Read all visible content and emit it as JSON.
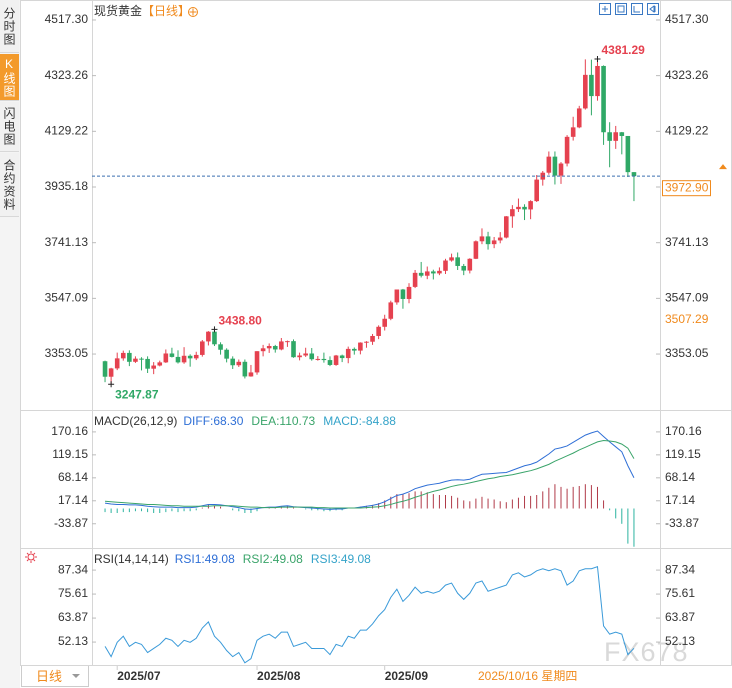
{
  "ui": {
    "sidebar": [
      "分时图",
      "K线图",
      "闪电图",
      "合约资料"
    ],
    "active_tab": 1,
    "period_tab": "日线",
    "cursor_date": "2025/10/16 星期四",
    "watermark": "FX678"
  },
  "chart_data": [
    {
      "type": "candlestick",
      "title": "现货黄金",
      "period": "【日线】",
      "up_color": "#e5414f",
      "down_color": "#2fa866",
      "categories": [
        null,
        null,
        "2025/07",
        null,
        null,
        null,
        null,
        null,
        null,
        null,
        null,
        null,
        null,
        null,
        null,
        null,
        null,
        null,
        null,
        null,
        null,
        null,
        null,
        null,
        null,
        "2025/08",
        null,
        null,
        null,
        null,
        null,
        null,
        null,
        null,
        null,
        null,
        null,
        null,
        null,
        null,
        null,
        null,
        null,
        null,
        null,
        null,
        "2025/09",
        null,
        null,
        null,
        null,
        null,
        null,
        null,
        null,
        null,
        null,
        null,
        null,
        null,
        null,
        null,
        null,
        null,
        null,
        null,
        null,
        null,
        null,
        null,
        null,
        null,
        null,
        null,
        null,
        null,
        null,
        null,
        null,
        null,
        null,
        null,
        null,
        null,
        null,
        null,
        null,
        null
      ],
      "open": [
        3328,
        3274,
        3303,
        3338,
        3357,
        3326,
        3337,
        3336,
        3302,
        3313,
        3324,
        3355,
        3343,
        3324,
        3347,
        3338,
        3350,
        3397,
        3431,
        3387,
        3368,
        3337,
        3314,
        3326,
        3275,
        3289,
        3363,
        3373,
        3381,
        3369,
        3397,
        3398,
        3342,
        3348,
        3355,
        3335,
        3336,
        3332,
        3315,
        3348,
        3339,
        3371,
        3365,
        3393,
        3396,
        3416,
        3448,
        3476,
        3533,
        3578,
        3545,
        3587,
        3636,
        3626,
        3641,
        3634,
        3643,
        3679,
        3690,
        3660,
        3644,
        3685,
        3746,
        3763,
        3736,
        3749,
        3759,
        3833,
        3858,
        3866,
        3857,
        3886,
        3961,
        3985,
        4041,
        3975,
        4017,
        4110,
        4143,
        4209,
        4326,
        4252,
        4357,
        4126,
        4096,
        4126,
        4113,
        3987
      ],
      "high": [
        3330,
        3305,
        3358,
        3365,
        3366,
        3345,
        3342,
        3345,
        3325,
        3330,
        3369,
        3375,
        3366,
        3377,
        3352,
        3361,
        3402,
        3433,
        3438.8,
        3394,
        3373,
        3345,
        3334,
        3334,
        3315,
        3363,
        3385,
        3390,
        3385,
        3409,
        3400,
        3404,
        3358,
        3375,
        3374,
        3346,
        3358,
        3345,
        3350,
        3351,
        3379,
        3376,
        3394,
        3398,
        3423,
        3453,
        3490,
        3539,
        3578,
        3580,
        3600,
        3646,
        3674,
        3658,
        3647,
        3655,
        3685,
        3703,
        3707,
        3667,
        3687,
        3749,
        3791,
        3779,
        3761,
        3778,
        3834,
        3872,
        3895,
        3875,
        3889,
        3977,
        3991,
        4059,
        4059,
        4022,
        4116,
        4180,
        4218,
        4380,
        4379,
        4381.29,
        4359,
        4161,
        4148,
        4127,
        4113,
        3987
      ],
      "low": [
        3255,
        3247.87,
        3297,
        3330,
        3311,
        3322,
        3296,
        3287,
        3283,
        3310,
        3322,
        3341,
        3320,
        3319,
        3309,
        3332,
        3344,
        3383,
        3381,
        3351,
        3324,
        3301,
        3308,
        3268,
        3274,
        3281,
        3345,
        3357,
        3358,
        3366,
        3378,
        3340,
        3331,
        3343,
        3330,
        3330,
        3323,
        3311,
        3312,
        3325,
        3321,
        3351,
        3352,
        3375,
        3385,
        3405,
        3435,
        3471,
        3525,
        3511,
        3530,
        3583,
        3620,
        3614,
        3613,
        3628,
        3632,
        3675,
        3646,
        3628,
        3634,
        3684,
        3736,
        3717,
        3722,
        3739,
        3756,
        3793,
        3848,
        3820,
        3823,
        3883,
        3940,
        3978,
        3944,
        3946,
        4007,
        4097,
        4140,
        4205,
        4185,
        4236,
        4082,
        4004,
        4068,
        4049,
        3970,
        3886
      ],
      "close": [
        3274,
        3303,
        3338,
        3357,
        3326,
        3337,
        3336,
        3302,
        3313,
        3324,
        3355,
        3343,
        3324,
        3347,
        3338,
        3350,
        3397,
        3431,
        3387,
        3368,
        3337,
        3314,
        3326,
        3275,
        3289,
        3363,
        3373,
        3381,
        3369,
        3397,
        3398,
        3342,
        3348,
        3355,
        3335,
        3336,
        3332,
        3315,
        3348,
        3339,
        3371,
        3365,
        3393,
        3396,
        3416,
        3448,
        3476,
        3533,
        3578,
        3545,
        3587,
        3636,
        3626,
        3641,
        3634,
        3643,
        3679,
        3690,
        3660,
        3644,
        3685,
        3746,
        3763,
        3736,
        3749,
        3759,
        3833,
        3858,
        3866,
        3857,
        3886,
        3961,
        3985,
        4041,
        3975,
        4017,
        4110,
        4143,
        4209,
        4326,
        4252,
        4357,
        4126,
        4096,
        4126,
        4113,
        3987,
        3972.9
      ],
      "ylim": [
        3165,
        4559
      ],
      "yticks": [
        3353.05,
        3547.09,
        3741.13,
        3935.18,
        4129.22,
        4323.26,
        {
          "value": 4517.3,
          "label": "4517.30"
        }
      ],
      "annotations": [
        {
          "value": 4381.29,
          "label": "4381.29"
        },
        {
          "value": 3438.8,
          "label": "3438.80"
        },
        {
          "value": 3247.87,
          "label": "3247.87"
        }
      ],
      "price_markers": [
        {
          "value": 3972.9,
          "label": "3972.90",
          "boxed": true
        },
        {
          "value": 3507.29,
          "label": "3507.29",
          "boxed": false
        }
      ]
    },
    {
      "type": "macd",
      "title": "MACD(26,12,9)",
      "series": [
        {
          "label": "DIFF:68.30",
          "color": "#2f6fd6",
          "kind": "line",
          "values": [
            12,
            10,
            9,
            9,
            8,
            8,
            7,
            5,
            4,
            3,
            3,
            3,
            2,
            2,
            2,
            3,
            6,
            9,
            9,
            8,
            6,
            4,
            2,
            -1,
            -2,
            0,
            2,
            3,
            3,
            5,
            6,
            4,
            3,
            2,
            1,
            0,
            -1,
            -2,
            -1,
            -1,
            1,
            1,
            3,
            5,
            7,
            10,
            15,
            22,
            29,
            32,
            37,
            44,
            48,
            52,
            54,
            56,
            60,
            63,
            64,
            63,
            65,
            71,
            76,
            77,
            78,
            79,
            80,
            85,
            90,
            95,
            98,
            103,
            112,
            121,
            132,
            135,
            139,
            147,
            155,
            163,
            168,
            172,
            160,
            148,
            137,
            126,
            95,
            68.3
          ]
        },
        {
          "label": "DEA:110.73",
          "color": "#3aa46a",
          "kind": "line",
          "values": [
            16,
            15,
            14,
            13,
            12,
            11,
            10,
            9,
            9,
            8,
            7,
            6,
            6,
            5,
            5,
            5,
            5,
            5,
            6,
            6,
            6,
            6,
            5,
            4,
            3,
            3,
            2,
            2,
            2,
            3,
            3,
            3,
            3,
            3,
            3,
            2,
            2,
            1,
            1,
            1,
            1,
            1,
            1,
            2,
            3,
            4,
            6,
            9,
            13,
            16,
            20,
            25,
            29,
            34,
            38,
            41,
            45,
            49,
            52,
            54,
            57,
            60,
            63,
            66,
            68,
            71,
            73,
            75,
            78,
            81,
            84,
            88,
            93,
            98,
            105,
            111,
            117,
            123,
            130,
            136,
            142,
            148,
            151,
            150,
            148,
            143,
            134,
            110.73
          ]
        },
        {
          "label": "MACD:-84.88",
          "color": "#35a3c9",
          "kind": "histogram",
          "up_color": "#b03a48",
          "down_color": "#2bb3a0",
          "values": [
            -8,
            -10,
            -10,
            -8,
            -8,
            -6,
            -6,
            -8,
            -10,
            -10,
            -8,
            -6,
            -8,
            -6,
            -6,
            -4,
            2,
            8,
            6,
            4,
            0,
            -4,
            -6,
            -10,
            -10,
            -6,
            0,
            2,
            2,
            4,
            6,
            2,
            0,
            -2,
            -4,
            -4,
            -6,
            -6,
            -4,
            -4,
            0,
            0,
            4,
            6,
            8,
            12,
            18,
            26,
            32,
            32,
            34,
            38,
            38,
            36,
            32,
            30,
            30,
            28,
            24,
            18,
            16,
            22,
            26,
            22,
            20,
            16,
            14,
            20,
            24,
            28,
            28,
            30,
            38,
            46,
            54,
            48,
            44,
            48,
            50,
            54,
            52,
            48,
            18,
            -4,
            -22,
            -34,
            -78,
            -84.88
          ]
        }
      ],
      "ylim": [
        -85.5,
        201
      ],
      "yticks": [
        -33.87,
        17.14,
        68.14,
        119.15,
        170.16
      ]
    },
    {
      "type": "line",
      "title": "RSI(14,14,14)",
      "legend": [
        "RSI1:49.08",
        "RSI2:49.08",
        "RSI3:49.08"
      ],
      "legend_colors": [
        "#2f6fd6",
        "#3aa46a",
        "#35a3c9"
      ],
      "color": "#3a9ad9",
      "values": [
        50,
        45,
        52,
        55,
        50,
        52,
        51,
        47,
        49,
        51,
        54,
        53,
        50,
        53,
        52,
        54,
        59,
        62,
        55,
        52,
        48,
        45,
        47,
        42,
        44,
        53,
        55,
        56,
        54,
        57,
        57,
        50,
        51,
        52,
        49,
        49,
        49,
        46,
        51,
        50,
        55,
        54,
        58,
        58,
        61,
        65,
        68,
        74,
        78,
        72,
        75,
        79,
        76,
        77,
        76,
        77,
        80,
        81,
        76,
        73,
        76,
        81,
        82,
        77,
        78,
        79,
        80,
        85,
        86,
        84,
        85,
        87,
        88,
        87,
        88,
        87,
        80,
        82,
        87,
        88,
        88,
        89,
        60,
        56,
        57,
        56,
        46,
        49.08
      ],
      "ylim": [
        41.4,
        95.7
      ],
      "yticks": [
        52.13,
        63.87,
        75.61,
        87.34
      ]
    }
  ]
}
